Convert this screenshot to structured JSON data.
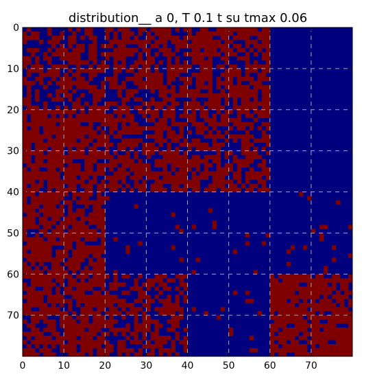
{
  "chart_data": {
    "type": "heatmap",
    "title": "distribution__ a 0, T 0.1 t su tmax 0.06",
    "xlabel": "",
    "ylabel": "",
    "nrows": 80,
    "ncols": 80,
    "xlim": [
      0,
      80
    ],
    "ylim": [
      80,
      0
    ],
    "x_ticks": [
      0,
      10,
      20,
      30,
      40,
      50,
      60,
      70
    ],
    "y_ticks": [
      0,
      10,
      20,
      30,
      40,
      50,
      60,
      70
    ],
    "grid": true,
    "colors": {
      "low": "#00007f",
      "high": "#7f0000",
      "grid": "#aaaaaa",
      "frame": "#000000"
    },
    "block_size": 20,
    "block_high_probability": [
      [
        0.55,
        0.65,
        0.7,
        0.0
      ],
      [
        0.85,
        0.7,
        0.65,
        0.0
      ],
      [
        0.8,
        0.03,
        0.03,
        0.04
      ],
      [
        0.75,
        0.55,
        0.04,
        0.85
      ]
    ]
  }
}
